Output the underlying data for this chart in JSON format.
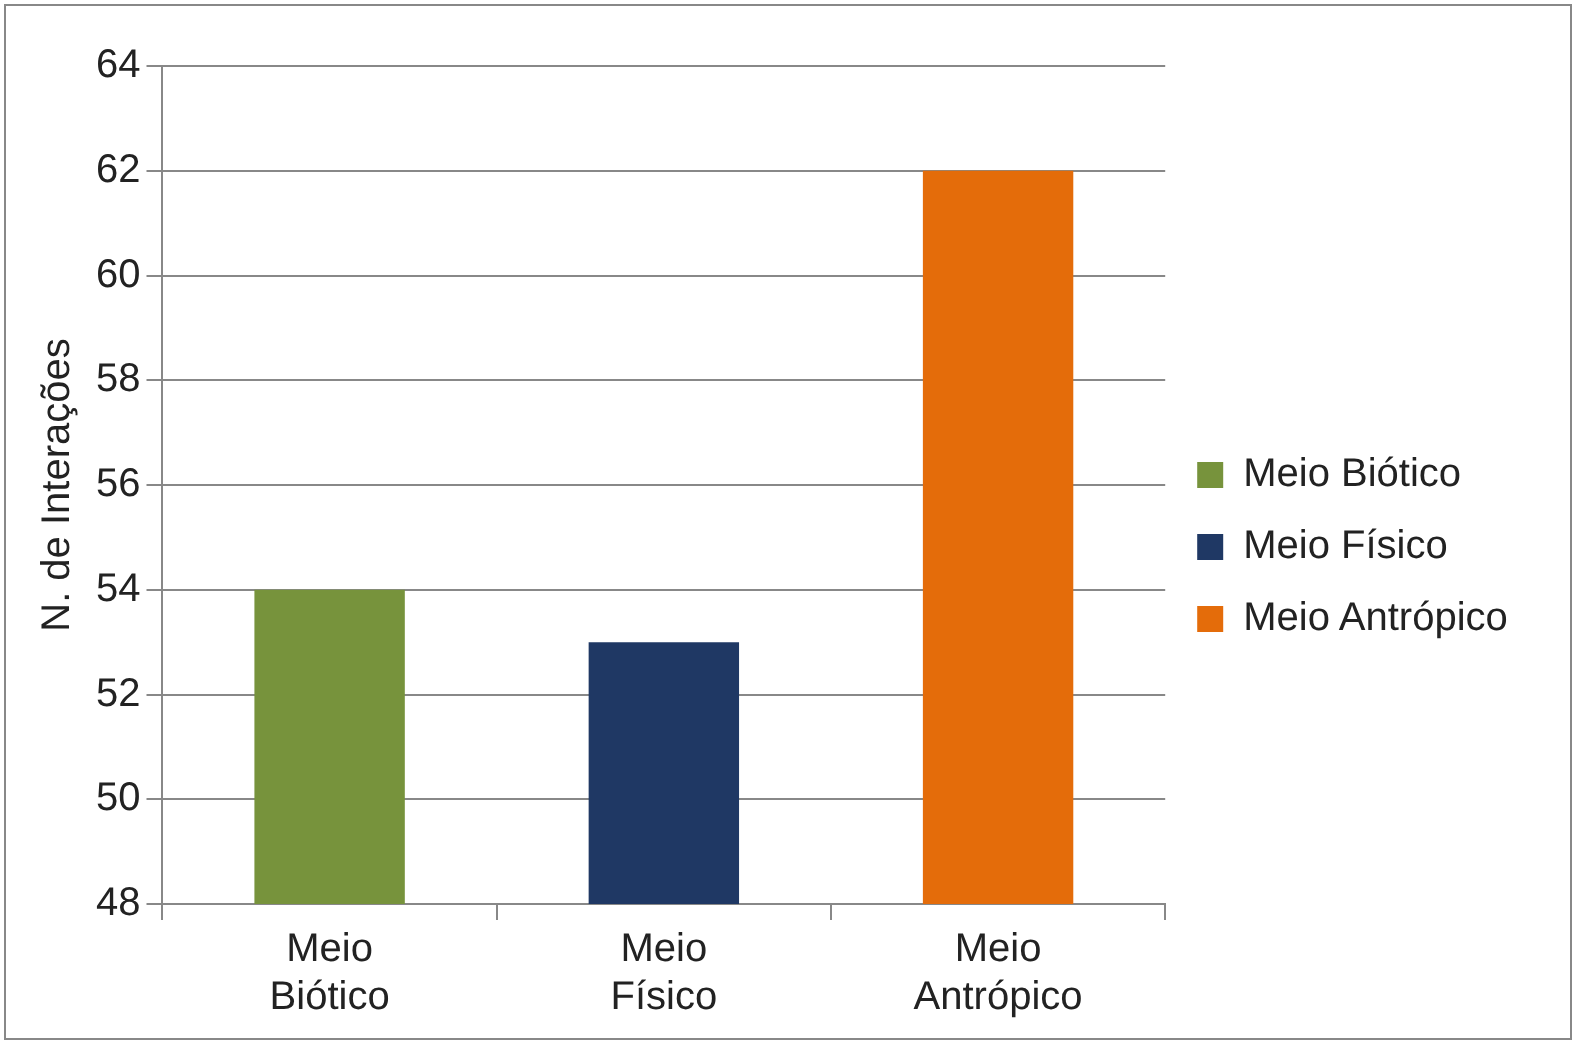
{
  "chart_data": {
    "type": "bar",
    "ylabel": "N. de Interações",
    "categories": [
      "Meio Biótico",
      "Meio Físico",
      "Meio Antrópico"
    ],
    "series": [
      {
        "name": "Meio Biótico",
        "color": "#77933c",
        "values": [
          54,
          null,
          null
        ]
      },
      {
        "name": "Meio Físico",
        "color": "#1f3864",
        "values": [
          null,
          53,
          null
        ]
      },
      {
        "name": "Meio Antrópico",
        "color": "#e46c0a",
        "values": [
          null,
          null,
          62
        ]
      }
    ],
    "ylim": [
      48,
      64
    ],
    "yticks": [
      48,
      50,
      52,
      54,
      56,
      58,
      60,
      62,
      64
    ],
    "grid": "y",
    "legend": "right"
  }
}
